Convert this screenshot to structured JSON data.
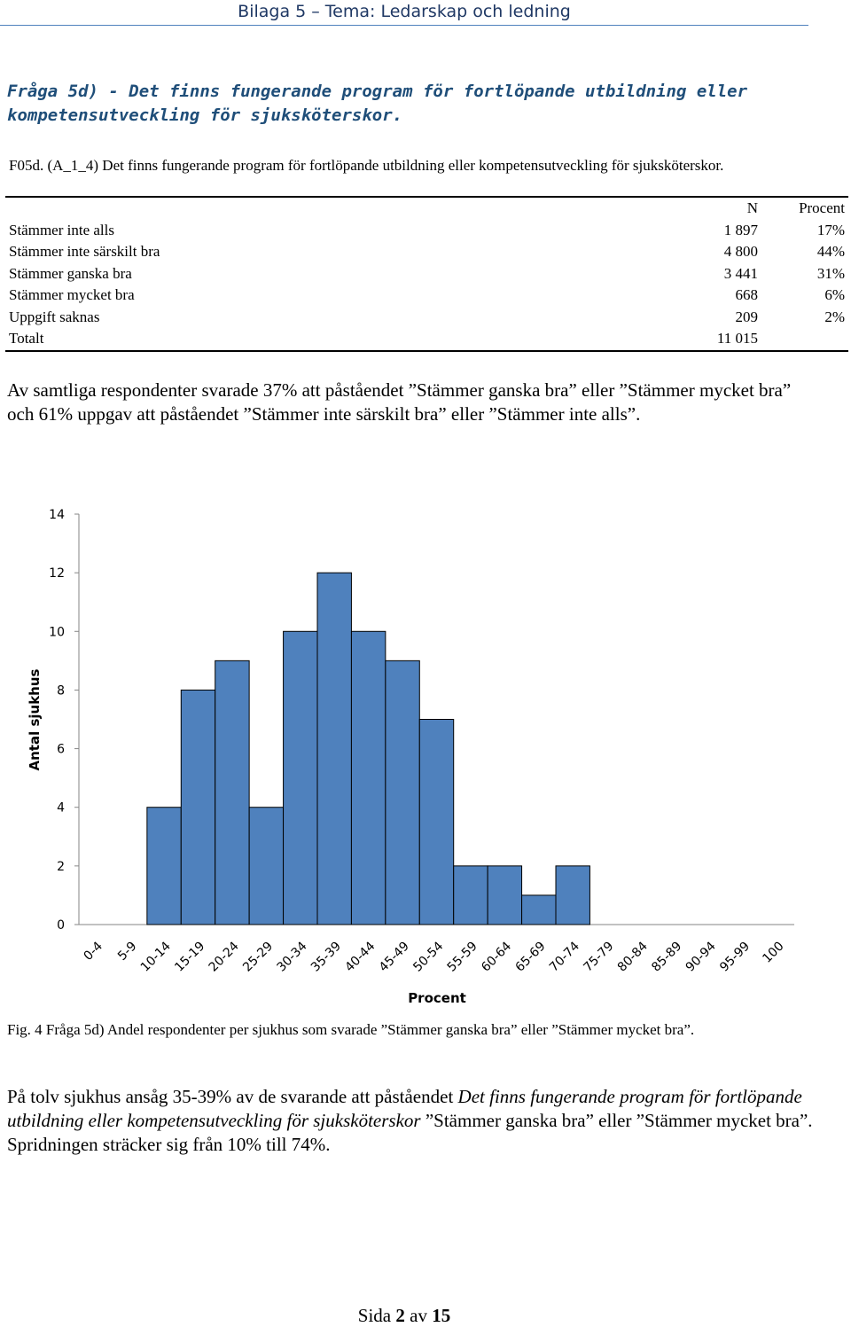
{
  "header": {
    "title": "Bilaga 5 – Tema: Ledarskap och ledning"
  },
  "heading": "Fråga 5d) - Det finns fungerande program för fortlöpande utbildning eller kompetensutveckling för sjuksköterskor.",
  "question": "F05d. (A_1_4) Det finns fungerande program för fortlöpande utbildning eller kompetensutveckling för sjuksköterskor.",
  "table": {
    "columns": [
      "",
      "N",
      "Procent"
    ],
    "rows": [
      {
        "label": "Stämmer inte alls",
        "n": "1 897",
        "pct": "17%"
      },
      {
        "label": "Stämmer inte särskilt bra",
        "n": "4 800",
        "pct": "44%"
      },
      {
        "label": "Stämmer ganska bra",
        "n": "3 441",
        "pct": "31%"
      },
      {
        "label": "Stämmer mycket bra",
        "n": "668",
        "pct": "6%"
      },
      {
        "label": "Uppgift saknas",
        "n": "209",
        "pct": "2%"
      }
    ],
    "total": {
      "label": "Totalt",
      "n": "11 015",
      "pct": ""
    }
  },
  "summary": "Av samtliga respondenter svarade 37% att påståendet ”Stämmer ganska bra” eller ”Stämmer mycket bra” och 61% uppgav att påståendet ”Stämmer inte särskilt bra” eller ”Stämmer inte alls”.",
  "chart_data": {
    "type": "bar",
    "title": "",
    "xlabel": "Procent",
    "ylabel": "Antal sjukhus",
    "categories": [
      "0-4",
      "5-9",
      "10-14",
      "15-19",
      "20-24",
      "25-29",
      "30-34",
      "35-39",
      "40-44",
      "45-49",
      "50-54",
      "55-59",
      "60-64",
      "65-69",
      "70-74",
      "75-79",
      "80-84",
      "85-89",
      "90-94",
      "95-99",
      "100"
    ],
    "values": [
      0,
      0,
      4,
      8,
      9,
      4,
      10,
      12,
      10,
      9,
      7,
      2,
      2,
      1,
      2,
      0,
      0,
      0,
      0,
      0,
      0
    ],
    "yticks": [
      "0",
      "2",
      "4",
      "6",
      "8",
      "10",
      "12",
      "14"
    ],
    "ylim": [
      0,
      14
    ],
    "bar_color": "#4f81bd",
    "grid": false,
    "legend": "none"
  },
  "caption": "Fig. 4 Fråga 5d) Andel respondenter per sjukhus som svarade ”Stämmer ganska bra” eller ”Stämmer mycket bra”.",
  "conclusion": {
    "part1": "På tolv sjukhus ansåg 35-39% av de svarande att påståendet ",
    "italic": "Det finns fungerande program för fortlöpande utbildning eller kompetensutveckling för sjuksköterskor",
    "part2": " ”Stämmer ganska bra” eller ”Stämmer mycket bra”. Spridningen sträcker sig från 10% till 74%."
  },
  "footer": {
    "prefix": "Sida ",
    "page": "2",
    "middle": " av ",
    "total": "15"
  }
}
